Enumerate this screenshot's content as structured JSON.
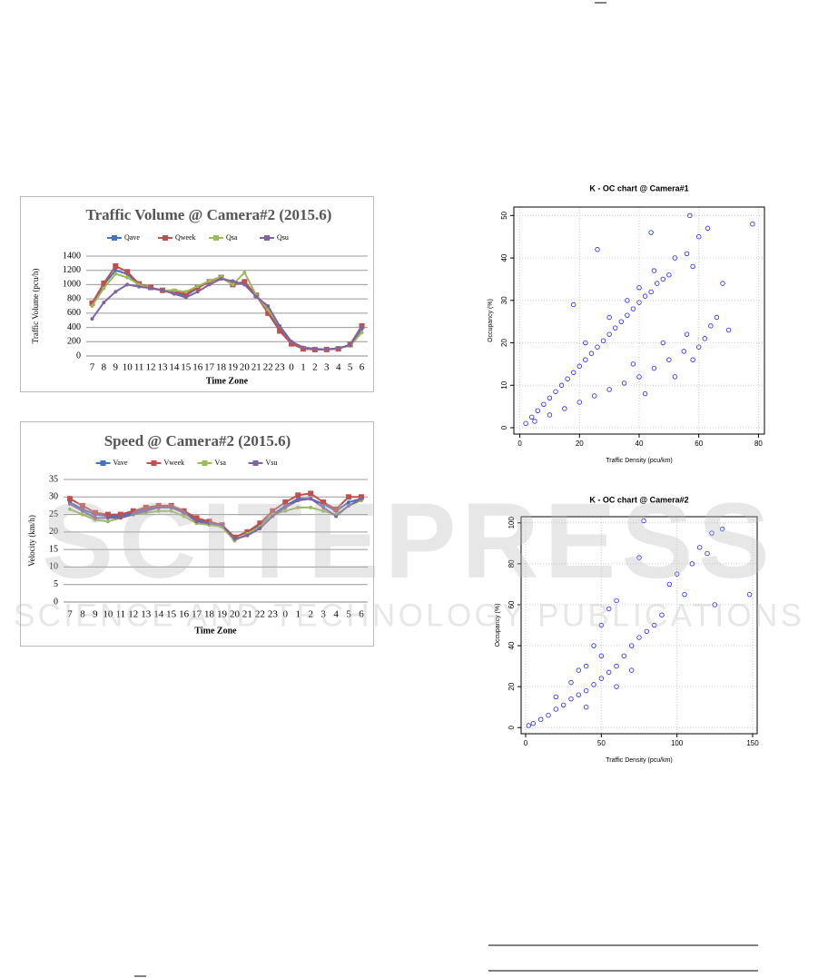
{
  "chart_data": [
    {
      "type": "line",
      "title": "Traffic Volume @ Camera#2 (2015.6)",
      "xlabel": "Time Zone",
      "ylabel": "Traffic Volume (pcu/h)",
      "categories": [
        "7",
        "8",
        "9",
        "10",
        "11",
        "12",
        "13",
        "14",
        "15",
        "16",
        "17",
        "18",
        "19",
        "20",
        "21",
        "22",
        "23",
        "0",
        "1",
        "2",
        "3",
        "4",
        "5",
        "6"
      ],
      "ylim": [
        0,
        1400
      ],
      "yticks": [
        0,
        200,
        400,
        600,
        800,
        1000,
        1200,
        1400
      ],
      "grid": true,
      "series": [
        {
          "name": "Qave",
          "color": "#4472c4",
          "values": [
            720,
            1000,
            1200,
            1150,
            1000,
            950,
            920,
            880,
            850,
            950,
            1050,
            1100,
            1020,
            1020,
            850,
            650,
            380,
            180,
            110,
            90,
            90,
            110,
            150,
            380
          ]
        },
        {
          "name": "Qweek",
          "color": "#c0504d",
          "values": [
            740,
            1020,
            1260,
            1180,
            1010,
            960,
            920,
            900,
            870,
            960,
            1040,
            1100,
            1000,
            1040,
            850,
            600,
            350,
            170,
            100,
            90,
            90,
            100,
            160,
            420
          ]
        },
        {
          "name": "Qsa",
          "color": "#9bbb59",
          "values": [
            700,
            950,
            1150,
            1100,
            1000,
            950,
            920,
            920,
            900,
            980,
            1050,
            1110,
            1000,
            1170,
            850,
            650,
            420,
            200,
            120,
            100,
            90,
            110,
            140,
            330
          ]
        },
        {
          "name": "Qsu",
          "color": "#8064a2",
          "values": [
            520,
            750,
            900,
            1000,
            970,
            950,
            920,
            870,
            820,
            900,
            1000,
            1080,
            1050,
            1000,
            830,
            700,
            420,
            200,
            120,
            100,
            90,
            110,
            150,
            400
          ]
        }
      ]
    },
    {
      "type": "line",
      "title": "Speed  @ Camera#2 (2015.6)",
      "xlabel": "Time Zone",
      "ylabel": "Velocity (km/h)",
      "categories": [
        "7",
        "8",
        "9",
        "10",
        "11",
        "12",
        "13",
        "14",
        "15",
        "16",
        "17",
        "18",
        "19",
        "20",
        "21",
        "22",
        "23",
        "0",
        "1",
        "2",
        "3",
        "4",
        "5",
        "6"
      ],
      "ylim": [
        0,
        35
      ],
      "yticks": [
        0,
        5,
        10,
        15,
        20,
        25,
        30,
        35
      ],
      "grid": true,
      "series": [
        {
          "name": "Vave",
          "color": "#4472c4",
          "values": [
            28.5,
            26.5,
            25,
            24.5,
            24.5,
            25.5,
            26.5,
            27,
            27,
            25.5,
            23.5,
            22.5,
            21.5,
            18.5,
            20,
            22,
            25,
            27.5,
            29.5,
            29.5,
            28,
            26,
            28.5,
            29.5
          ]
        },
        {
          "name": "Vweek",
          "color": "#c0504d",
          "values": [
            29.5,
            27.5,
            25.5,
            25,
            25,
            26,
            27,
            27.5,
            27.5,
            26,
            24,
            23,
            22,
            18.5,
            20,
            22.5,
            26,
            28.5,
            30.5,
            31,
            28.5,
            26.5,
            30,
            30
          ]
        },
        {
          "name": "Vsa",
          "color": "#9bbb59",
          "values": [
            26.5,
            25,
            23.5,
            23,
            24,
            25,
            25.5,
            26,
            26,
            24.5,
            22.5,
            22,
            21.5,
            17.5,
            19.5,
            21.5,
            25,
            26,
            27,
            27,
            26,
            25,
            27.5,
            29
          ]
        },
        {
          "name": "Vsu",
          "color": "#8064a2",
          "values": [
            28,
            26,
            24,
            24,
            24,
            25,
            26,
            27,
            27,
            25.5,
            23,
            22.5,
            22,
            18,
            19,
            21,
            24.5,
            27,
            29,
            29.5,
            27,
            24.5,
            27.5,
            29.5
          ]
        }
      ]
    },
    {
      "type": "scatter",
      "title": "K - OC chart @ Camera#1",
      "xlabel": "Traffic Density (pcu/km)",
      "ylabel": "Occupancy (%)",
      "color": "#1f1fff",
      "xlim": [
        -2,
        82
      ],
      "xticks": [
        0,
        20,
        40,
        60,
        80
      ],
      "ylim": [
        -1.5,
        52
      ],
      "yticks": [
        0,
        10,
        20,
        30,
        40,
        50
      ],
      "grid": true,
      "x": [
        2,
        4,
        6,
        8,
        10,
        12,
        14,
        16,
        18,
        20,
        22,
        24,
        26,
        28,
        30,
        32,
        34,
        36,
        38,
        40,
        42,
        44,
        46,
        48,
        50,
        22,
        30,
        36,
        40,
        45,
        18,
        26,
        44,
        52,
        56,
        58,
        5,
        10,
        15,
        20,
        25,
        30,
        35,
        40,
        45,
        50,
        55,
        60,
        62,
        64,
        66,
        70,
        68,
        38,
        48,
        56,
        58,
        42,
        52,
        78,
        60,
        63,
        57
      ],
      "values": [
        1,
        2.5,
        4,
        5.5,
        7,
        8.5,
        10,
        11.5,
        13,
        14.5,
        16,
        17.5,
        19,
        20.5,
        22,
        23.5,
        25,
        26.5,
        28,
        29.5,
        31,
        32,
        34,
        35,
        36,
        20,
        26,
        30,
        33,
        37,
        29,
        42,
        46,
        40,
        41,
        38,
        1.5,
        3,
        4.5,
        6,
        7.5,
        9,
        10.5,
        12,
        14,
        16,
        18,
        19,
        21,
        24,
        26,
        23,
        34,
        15,
        20,
        22,
        16,
        8,
        12,
        48,
        45,
        47,
        50
      ]
    },
    {
      "type": "scatter",
      "title": "K - OC chart @ Camera#2",
      "xlabel": "Traffic Density (pcu/km)",
      "ylabel": "Occupancy (%)",
      "color": "#1f1fff",
      "xlim": [
        -3,
        153
      ],
      "xticks": [
        0,
        50,
        100,
        150
      ],
      "ylim": [
        -3,
        103
      ],
      "yticks": [
        0,
        20,
        40,
        60,
        80,
        100
      ],
      "grid": true,
      "x": [
        2,
        5,
        10,
        15,
        20,
        25,
        30,
        35,
        40,
        45,
        50,
        55,
        60,
        65,
        70,
        75,
        80,
        85,
        20,
        30,
        40,
        45,
        50,
        55,
        60,
        75,
        78,
        95,
        100,
        110,
        120,
        123,
        125,
        130,
        148,
        40,
        60,
        70,
        50,
        35,
        90,
        105,
        115
      ],
      "values": [
        1,
        2,
        4,
        6,
        9,
        11,
        14,
        16,
        18,
        21,
        24,
        27,
        30,
        35,
        40,
        44,
        47,
        50,
        15,
        22,
        30,
        40,
        50,
        58,
        62,
        83,
        101,
        70,
        75,
        80,
        85,
        95,
        60,
        97,
        65,
        10,
        20,
        28,
        35,
        28,
        55,
        65,
        88
      ]
    }
  ],
  "watermark": {
    "title": "SCITEPRESS",
    "subtitle": "SCIENCE AND TECHNOLOGY PUBLICATIONS"
  }
}
